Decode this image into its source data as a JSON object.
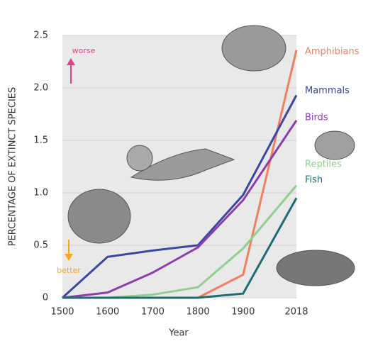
{
  "chart_data": {
    "type": "line",
    "y_label": "PERCENTAGE OF EXTINCT SPECIES",
    "x_label": "Year",
    "annotations": [
      "worse",
      "better"
    ],
    "x": [
      1500,
      1600,
      1700,
      1800,
      1900,
      2018
    ],
    "xlim": [
      1500,
      2018
    ],
    "xticks": [
      1500,
      1600,
      1700,
      1800,
      1900,
      2018
    ],
    "ylim": [
      0,
      2.5
    ],
    "yticks": [
      0,
      0.5,
      {
        "value": 1,
        "label": "1.0"
      },
      1.5,
      {
        "value": 2,
        "label": "2.0"
      },
      2.5
    ],
    "grid": true,
    "series": [
      {
        "name": "Amphibians",
        "color": "#f0805e",
        "values": [
          0,
          0,
          0,
          0,
          0.22,
          2.36
        ]
      },
      {
        "name": "Mammals",
        "color": "#3b48a3",
        "values": [
          0,
          0.39,
          0.45,
          0.5,
          0.98,
          1.93
        ]
      },
      {
        "name": "Birds",
        "color": "#8c3fab",
        "values": [
          0,
          0.05,
          0.24,
          0.48,
          0.93,
          1.69
        ]
      },
      {
        "name": "Reptiles",
        "color": "#8fd08f",
        "values": [
          0,
          0,
          0.03,
          0.1,
          0.47,
          1.07
        ]
      },
      {
        "name": "Fish",
        "color": "#1f6b72",
        "values": [
          0,
          0,
          0,
          0,
          0.04,
          0.95
        ]
      }
    ]
  }
}
